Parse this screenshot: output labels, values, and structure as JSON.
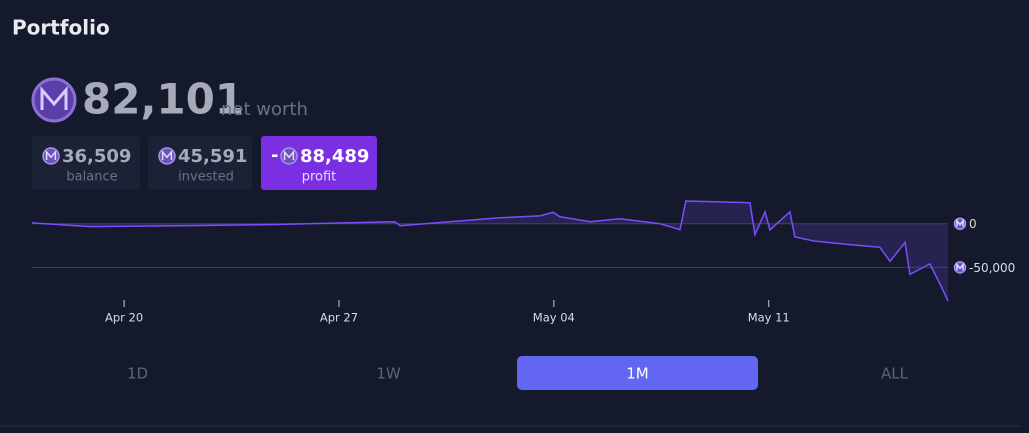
{
  "header": {
    "title": "Portfolio"
  },
  "net_worth": {
    "value": "82,101",
    "label": "net worth"
  },
  "stats": [
    {
      "value": "36,509",
      "label": "balance"
    },
    {
      "value": "45,591",
      "label": "invested"
    },
    {
      "sign": "-",
      "value": "88,489",
      "label": "profit"
    }
  ],
  "chart_data": {
    "type": "line",
    "color": "#7c4dff",
    "x": [
      0,
      1.89,
      5.47,
      7.75,
      11.82,
      11.99,
      15.24,
      16.55,
      16.97,
      17.2,
      18.18,
      19.15,
      20.46,
      21.11,
      21.3,
      22.41,
      23.39,
      23.55,
      23.88,
      24.04,
      24.69,
      24.85,
      25.5,
      26.64,
      27.62,
      27.95,
      28.44,
      28.6,
      29.25,
      29.58,
      29.84
    ],
    "values": [
      1000,
      -3400,
      -2000,
      -1000,
      2300,
      -2300,
      6800,
      9000,
      13000,
      8000,
      2300,
      5700,
      0,
      -6800,
      26000,
      25000,
      24000,
      -12500,
      13600,
      -7000,
      13600,
      -15000,
      -20000,
      -24000,
      -27000,
      -43000,
      -21500,
      -58000,
      -46000,
      -69000,
      -88489
    ],
    "xlim": [
      0,
      29.84
    ],
    "xticks": [
      {
        "value": 3,
        "label": "Apr 20"
      },
      {
        "value": 10,
        "label": "Apr 27"
      },
      {
        "value": 17,
        "label": "May 04"
      },
      {
        "value": 24,
        "label": "May 11"
      }
    ],
    "ylim": [
      -88489,
      26000
    ],
    "yticks": [
      0,
      {
        "value": -50000,
        "label": "-50,000"
      }
    ],
    "grid": true
  },
  "tabs": [
    "1D",
    "1W",
    "1M",
    "ALL"
  ],
  "selected_tab": "1M"
}
